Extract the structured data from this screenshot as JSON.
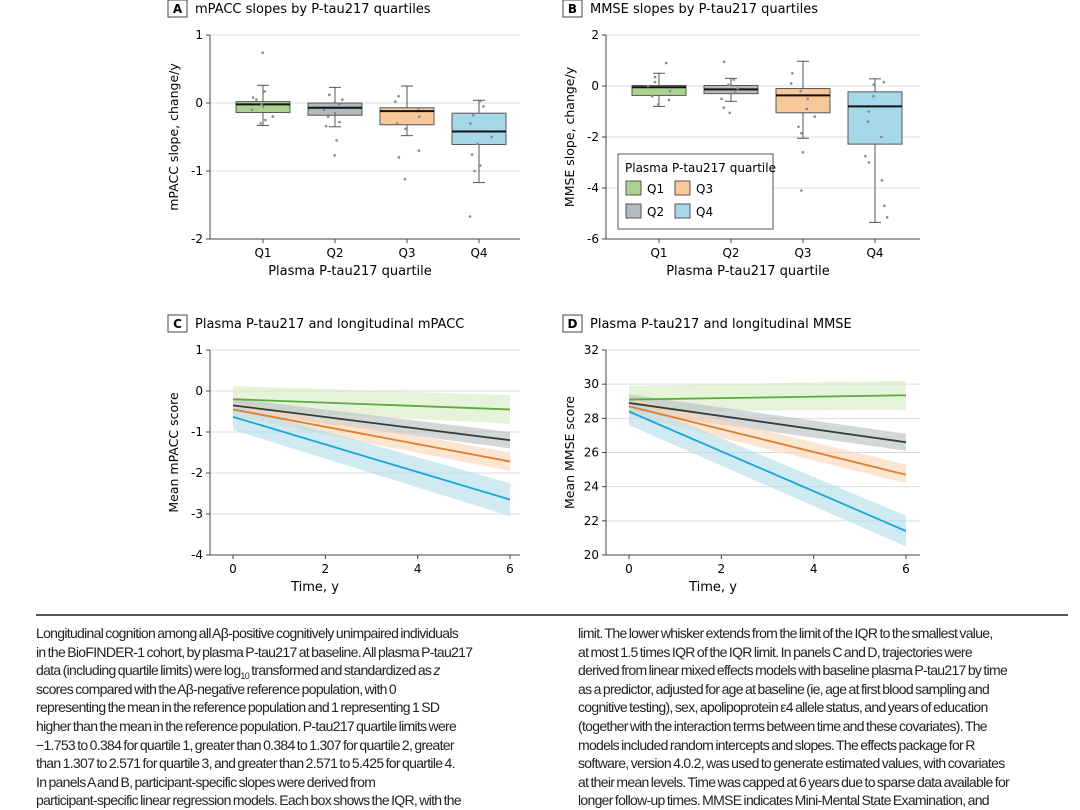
{
  "colors": {
    "Q1": {
      "fill": "#acd28f",
      "line": "#5bab3d",
      "band": "#d6eabf"
    },
    "Q2": {
      "fill": "#b5babd",
      "line": "#2f3d3d",
      "band": "#b7bcbe"
    },
    "Q3": {
      "fill": "#f8c89b",
      "line": "#e37d2b",
      "band": "#fbd6b2"
    },
    "Q4": {
      "fill": "#a6d8e8",
      "line": "#1ca4d8",
      "band": "#b1dcea"
    }
  },
  "chart_data": [
    {
      "panel": "A",
      "type": "box",
      "title": "mPACC slopes by P-tau217 quartiles",
      "xlabel": "Plasma P-tau217 quartile",
      "ylabel": "mPACC slope, change/y",
      "ylim": [
        -2,
        1
      ],
      "yticks": [
        1,
        0,
        -1,
        -2
      ],
      "grid": true,
      "categories": [
        "Q1",
        "Q2",
        "Q3",
        "Q4"
      ],
      "boxes": [
        {
          "median": -0.02,
          "q1": -0.14,
          "q3": 0.02,
          "whisker_low": -0.33,
          "whisker_high": 0.26,
          "points": [
            0.74,
            0.17,
            0.08,
            0.05,
            -0.02,
            -0.05,
            -0.1,
            -0.2,
            -0.25,
            -0.3
          ]
        },
        {
          "median": -0.07,
          "q1": -0.18,
          "q3": 0.0,
          "whisker_low": -0.35,
          "whisker_high": 0.23,
          "points": [
            0.12,
            0.05,
            -0.02,
            -0.1,
            -0.15,
            -0.2,
            -0.28,
            -0.34,
            -0.55,
            -0.77
          ]
        },
        {
          "median": -0.12,
          "q1": -0.32,
          "q3": -0.07,
          "whisker_low": -0.48,
          "whisker_high": 0.25,
          "points": [
            0.1,
            0.02,
            -0.08,
            -0.2,
            -0.3,
            -0.38,
            -0.7,
            -0.8,
            -1.12
          ]
        },
        {
          "median": -0.42,
          "q1": -0.61,
          "q3": -0.15,
          "whisker_low": -1.17,
          "whisker_high": 0.04,
          "points": [
            0.03,
            -0.05,
            -0.18,
            -0.3,
            -0.5,
            -0.6,
            -0.76,
            -0.92,
            -1.0,
            -1.67
          ]
        }
      ]
    },
    {
      "panel": "B",
      "type": "box",
      "title": "MMSE slopes by P-tau217 quartiles",
      "xlabel": "Plasma P-tau217 quartile",
      "ylabel": "MMSE slope, change/y",
      "ylim": [
        -6,
        2
      ],
      "yticks": [
        2,
        0,
        -2,
        -4,
        -6
      ],
      "grid": true,
      "categories": [
        "Q1",
        "Q2",
        "Q3",
        "Q4"
      ],
      "legend": {
        "title": "Plasma P-tau217 quartile",
        "entries": [
          "Q1",
          "Q2",
          "Q3",
          "Q4"
        ],
        "placement": "bottom-left"
      },
      "boxes": [
        {
          "median": -0.05,
          "q1": -0.37,
          "q3": 0.02,
          "whisker_low": -0.8,
          "whisker_high": 0.5,
          "points": [
            0.9,
            0.35,
            0.15,
            0,
            -0.2,
            -0.4,
            -0.55,
            -0.72
          ]
        },
        {
          "median": -0.13,
          "q1": -0.3,
          "q3": 0.02,
          "whisker_low": -0.6,
          "whisker_high": 0.3,
          "points": [
            0.95,
            0.25,
            0.05,
            -0.1,
            -0.25,
            -0.5,
            -0.85,
            -1.05
          ]
        },
        {
          "median": -0.37,
          "q1": -1.05,
          "q3": -0.1,
          "whisker_low": -2.05,
          "whisker_high": 0.97,
          "points": [
            0.5,
            0.1,
            -0.2,
            -0.5,
            -0.9,
            -1.2,
            -1.6,
            -1.85,
            -2.6,
            -4.1
          ]
        },
        {
          "median": -0.8,
          "q1": -2.28,
          "q3": -0.23,
          "whisker_low": -5.35,
          "whisker_high": 0.28,
          "points": [
            0.15,
            0.05,
            -0.4,
            -1.0,
            -1.4,
            -2.0,
            -2.75,
            -3.0,
            -3.7,
            -4.7,
            -5.15
          ]
        }
      ]
    },
    {
      "panel": "C",
      "type": "line",
      "title": "Plasma P-tau217 and longitudinal mPACC",
      "xlabel": "Time, y",
      "ylabel": "Mean mPACC score",
      "xlim": [
        0,
        6
      ],
      "ylim": [
        -4,
        1
      ],
      "xticks": [
        0,
        2,
        4,
        6
      ],
      "yticks": [
        1,
        0,
        -1,
        -2,
        -3,
        -4
      ],
      "grid": true,
      "series": [
        {
          "quartile": "Q1",
          "x": [
            0,
            6
          ],
          "y": [
            -0.2,
            -0.45
          ],
          "lower": [
            -0.45,
            -0.8
          ],
          "upper": [
            0.12,
            -0.1
          ]
        },
        {
          "quartile": "Q2",
          "x": [
            0,
            6
          ],
          "y": [
            -0.35,
            -1.2
          ],
          "lower": [
            -0.5,
            -1.4
          ],
          "upper": [
            -0.18,
            -1.0
          ]
        },
        {
          "quartile": "Q3",
          "x": [
            0,
            6
          ],
          "y": [
            -0.45,
            -1.72
          ],
          "lower": [
            -0.62,
            -1.95
          ],
          "upper": [
            -0.28,
            -1.5
          ]
        },
        {
          "quartile": "Q4",
          "x": [
            0,
            6
          ],
          "y": [
            -0.63,
            -2.65
          ],
          "lower": [
            -0.95,
            -3.05
          ],
          "upper": [
            -0.35,
            -2.25
          ]
        }
      ]
    },
    {
      "panel": "D",
      "type": "line",
      "title": "Plasma P-tau217 and longitudinal MMSE",
      "xlabel": "Time, y",
      "ylabel": "Mean MMSE score",
      "xlim": [
        0,
        6
      ],
      "ylim": [
        20,
        32
      ],
      "xticks": [
        0,
        2,
        4,
        6
      ],
      "yticks": [
        32,
        30,
        28,
        26,
        24,
        22,
        20
      ],
      "grid": true,
      "series": [
        {
          "quartile": "Q1",
          "x": [
            0,
            6
          ],
          "y": [
            29.1,
            29.35
          ],
          "lower": [
            28.4,
            28.5
          ],
          "upper": [
            29.9,
            30.2
          ]
        },
        {
          "quartile": "Q2",
          "x": [
            0,
            6
          ],
          "y": [
            28.9,
            26.6
          ],
          "lower": [
            28.4,
            26.1
          ],
          "upper": [
            29.4,
            27.1
          ]
        },
        {
          "quartile": "Q3",
          "x": [
            0,
            6
          ],
          "y": [
            28.7,
            24.7
          ],
          "lower": [
            28.2,
            24.2
          ],
          "upper": [
            29.2,
            25.3
          ]
        },
        {
          "quartile": "Q4",
          "x": [
            0,
            6
          ],
          "y": [
            28.4,
            21.4
          ],
          "lower": [
            27.6,
            20.5
          ],
          "upper": [
            29.1,
            22.3
          ]
        }
      ]
    }
  ],
  "caption": {
    "left": [
      "Longitudinal cognition among all Aβ-positive cognitively unimpaired individuals",
      "in the BioFINDER-1 cohort, by plasma P-tau217 at baseline. All plasma P-tau217",
      "data (including quartile limits) were log",
      "10",
      " transformed and standardized as ",
      "z",
      "scores compared with the Aβ-negative reference population, with 0",
      "representing the mean in the reference population and 1 representing 1 SD",
      "higher than the mean in the reference population. P-tau217 quartile limits were",
      "−1.753 to 0.384 for quartile 1, greater than 0.384 to 1.307 for quartile 2, greater",
      "than 1.307 to 2.571 for quartile 3, and greater than 2.571 to 5.425 for quartile 4.",
      "In panels A and B, participant-specific slopes were derived from",
      "participant-specific linear regression models. Each box shows the IQR, with the"
    ],
    "right": [
      "limit. The lower whisker extends from the limit of the IQR to the smallest value,",
      "at most 1.5 times IQR of the IQR limit. In panels C and D, trajectories were",
      "derived from linear mixed effects models with baseline plasma P-tau217 by time",
      "as a predictor, adjusted for age at baseline (ie, age at first blood sampling and",
      "cognitive testing), sex, apolipoprotein ε4 allele status, and years of education",
      "(together with the interaction terms between time and these covariates). The",
      "models included random intercepts and slopes. The effects package for R",
      "software, version 4.0.2, was used to generate estimated values, with covariates",
      "at their mean levels. Time was capped at 6 years due to sparse data available for",
      "longer follow-up times. MMSE indicates Mini-Mental State Examination, and"
    ]
  }
}
